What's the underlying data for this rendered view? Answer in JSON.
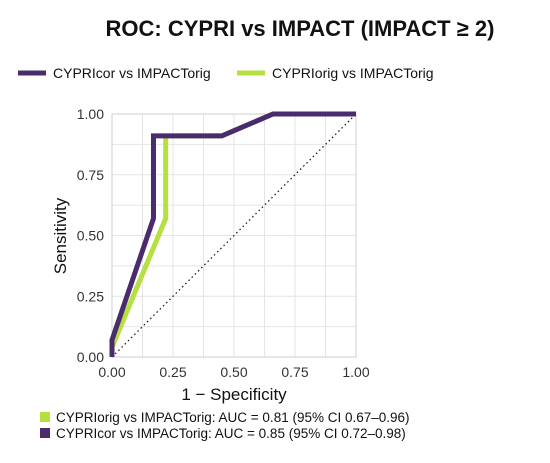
{
  "colors": {
    "cypri_cor": "#4a2c6e",
    "cypri_orig": "#b5e040",
    "diagonal": "#111111"
  },
  "chart_data": {
    "type": "line",
    "title": "ROC: CYPRI vs IMPACT (IMPACT ≥ 2)",
    "xlabel": "1 − Specificity",
    "ylabel": "Sensitivity",
    "xlim": [
      0,
      1
    ],
    "ylim": [
      0,
      1
    ],
    "x_ticks": [
      "0.00",
      "0.25",
      "0.50",
      "0.75",
      "1.00"
    ],
    "y_ticks": [
      "0.00",
      "0.25",
      "0.50",
      "0.75",
      "1.00"
    ],
    "grid": true,
    "legend_position": "top",
    "reference_line": "diagonal dotted",
    "series": [
      {
        "name": "CYPRIcor vs IMPACTorig",
        "color": "#4a2c6e",
        "points": [
          [
            0,
            0
          ],
          [
            0,
            0.07
          ],
          [
            0.17,
            0.57
          ],
          [
            0.17,
            0.91
          ],
          [
            0.22,
            0.91
          ],
          [
            0.45,
            0.91
          ],
          [
            0.66,
            1.0
          ],
          [
            1.0,
            1.0
          ]
        ]
      },
      {
        "name": "CYPRIorig vs IMPACTorig",
        "color": "#b5e040",
        "points": [
          [
            0,
            0
          ],
          [
            0,
            0.04
          ],
          [
            0.22,
            0.57
          ],
          [
            0.22,
            0.91
          ],
          [
            0.45,
            0.91
          ],
          [
            0.66,
            1.0
          ],
          [
            1.0,
            1.0
          ]
        ]
      }
    ],
    "annotations": [
      {
        "text": "CYPRIorig vs IMPACTorig: AUC = 0.81 (95% CI 0.67–0.96)",
        "color": "#b5e040"
      },
      {
        "text": "CYPRIcor vs IMPACTorig: AUC = 0.85 (95% CI 0.72–0.98)",
        "color": "#4a2c6e"
      }
    ]
  }
}
